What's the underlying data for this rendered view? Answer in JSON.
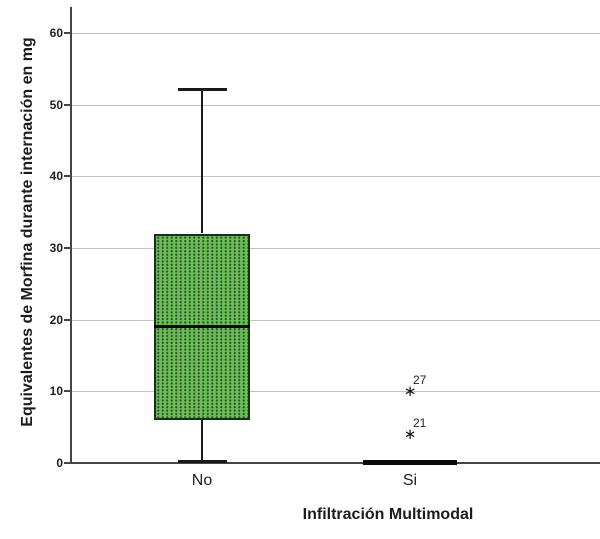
{
  "chart_data": {
    "type": "boxplot",
    "title": "",
    "xlabel": "Infiltración Multimodal",
    "ylabel": "Equivalentes de Morfina durante internación en mg",
    "ylim": [
      0,
      63.6
    ],
    "yticks": [
      0,
      10,
      20,
      30,
      40,
      50,
      60
    ],
    "grid": "horizontal",
    "categories": [
      "No",
      "Si"
    ],
    "boxes": [
      {
        "category": "No",
        "whisker_low": 0,
        "q1": 6,
        "median": 19,
        "q3": 32,
        "whisker_high": 52,
        "outliers": []
      },
      {
        "category": "Si",
        "whisker_low": 0,
        "q1": 0,
        "median": 0,
        "q3": 0,
        "whisker_high": 0,
        "outliers": [
          {
            "value": 10,
            "case_label": "27"
          },
          {
            "value": 4,
            "case_label": "21"
          }
        ]
      }
    ],
    "outlier_marker_glyph": "∗",
    "colors": {
      "box_fill": "#6cbe58",
      "box_dot": "#2c5226",
      "box_border": "#16301a",
      "median": "#000000",
      "whisker": "#1a1a1a",
      "collapsed_box": "#0a0a0a",
      "gridline": "#c2c2c2",
      "axis": "#454545",
      "text": "#1f1f1f"
    }
  }
}
